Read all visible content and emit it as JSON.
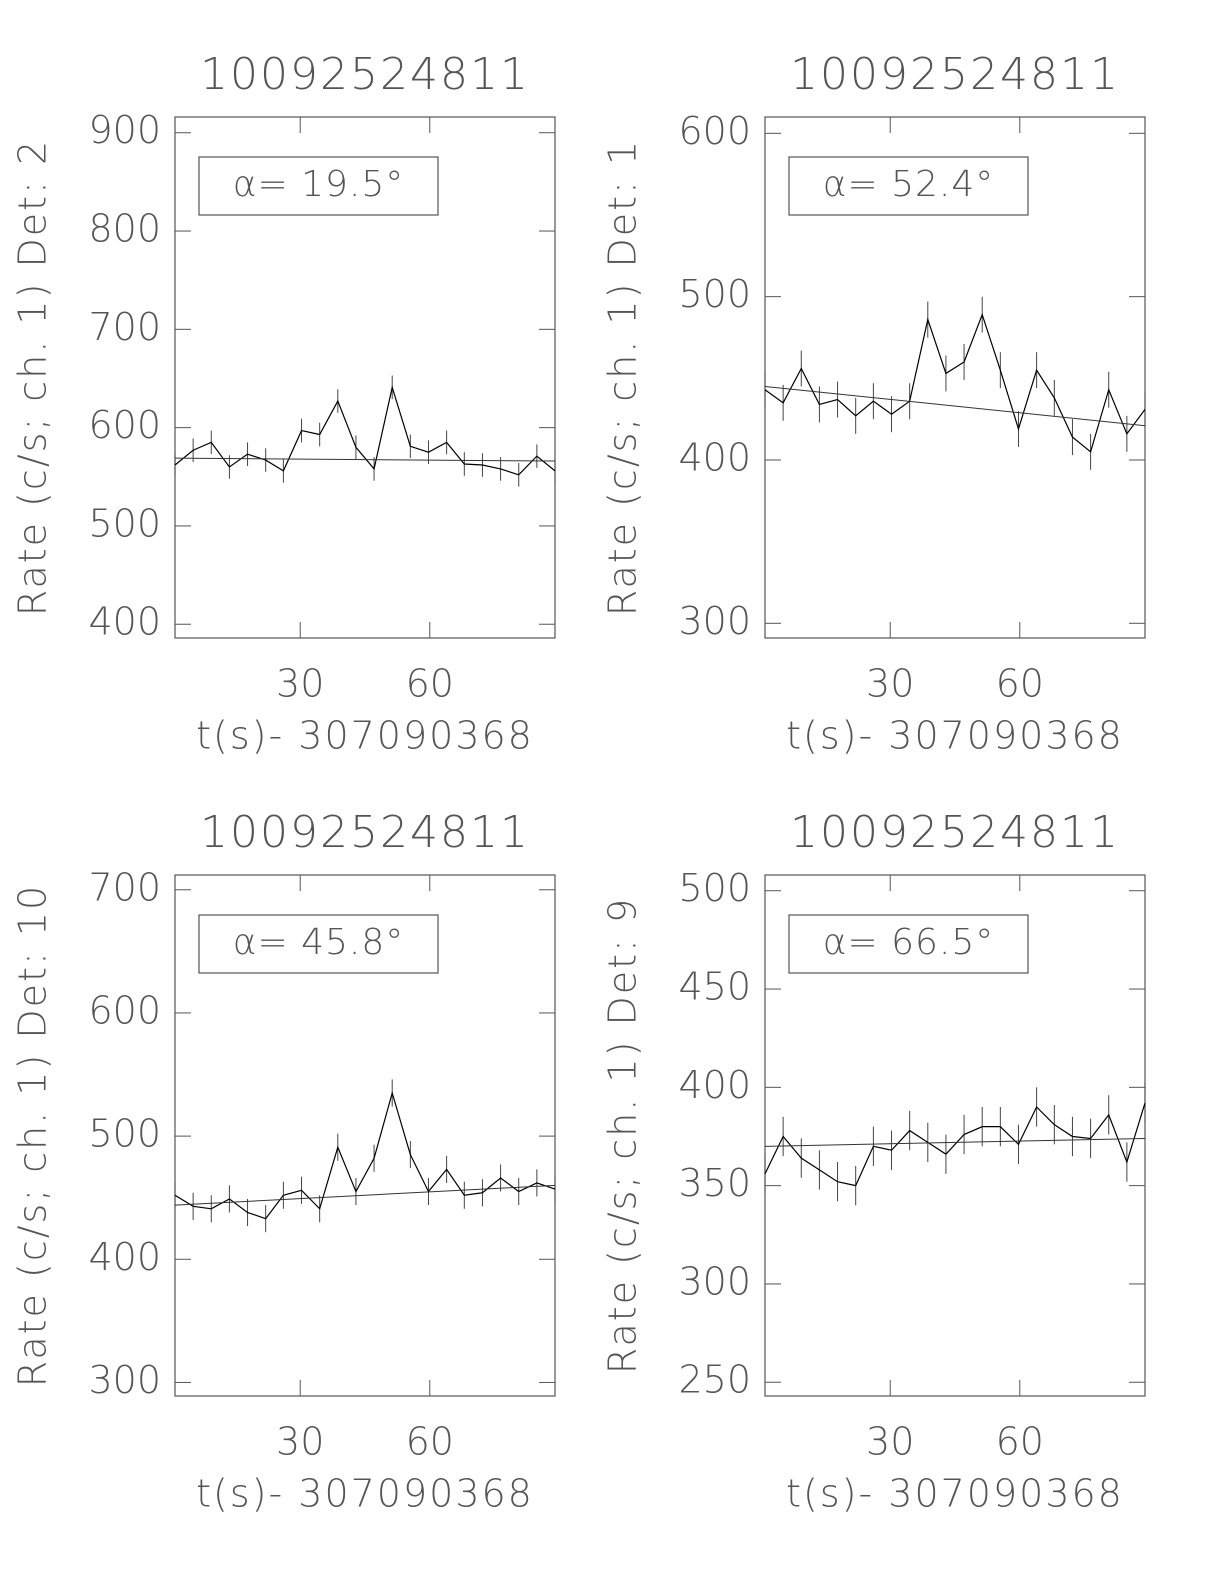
{
  "chart_data": [
    {
      "type": "line",
      "title": "10092524811",
      "ylabel": "Rate (c/s; ch. 1) Det: 2",
      "xlabel": "t(s)- 307090368",
      "annotation": "α= 19.5°",
      "x": [
        1,
        5.2,
        9.4,
        13.6,
        17.8,
        22,
        26.1,
        30.3,
        34.5,
        38.7,
        42.9,
        47.1,
        51.3,
        55.5,
        59.7,
        63.9,
        68,
        72.2,
        76.4,
        80.6,
        84.8,
        89
      ],
      "values": [
        562,
        577,
        585,
        560,
        573,
        567,
        556,
        597,
        593,
        627,
        580,
        558,
        641,
        581,
        575,
        585,
        563,
        562,
        558,
        552,
        571,
        556
      ],
      "errors": [
        12,
        12,
        12,
        12,
        12,
        12,
        12,
        12,
        12,
        12,
        12,
        12,
        12,
        12,
        12,
        12,
        12,
        12,
        12,
        12,
        12,
        12
      ],
      "fit_values": [
        569,
        566
      ],
      "color": "#000000",
      "xlim": [
        1,
        89
      ],
      "ylim": [
        386,
        916
      ],
      "xticks": [
        30,
        60
      ],
      "yticks": [
        400,
        500,
        600,
        700,
        800,
        900
      ]
    },
    {
      "type": "line",
      "title": "10092524811",
      "ylabel": "Rate (c/s; ch. 1) Det: 1",
      "xlabel": "t(s)- 307090368",
      "annotation": "α= 52.4°",
      "x": [
        1,
        5.2,
        9.4,
        13.6,
        17.8,
        22,
        26.1,
        30.3,
        34.5,
        38.7,
        42.9,
        47.1,
        51.3,
        55.5,
        59.7,
        63.9,
        68,
        72.2,
        76.4,
        80.6,
        84.8,
        89
      ],
      "values": [
        443,
        435,
        456,
        434,
        437,
        427,
        436,
        428,
        436,
        486,
        453,
        460,
        489,
        455,
        419,
        455,
        438,
        414,
        405,
        443,
        416,
        431
      ],
      "errors": [
        11,
        11,
        11,
        11,
        11,
        11,
        11,
        11,
        11,
        11,
        11,
        11,
        11,
        11,
        11,
        11,
        11,
        11,
        11,
        11,
        11,
        11
      ],
      "fit_values": [
        445,
        421
      ],
      "color": "#000000",
      "xlim": [
        1,
        89
      ],
      "ylim": [
        291,
        610
      ],
      "xticks": [
        30,
        60
      ],
      "yticks": [
        300,
        400,
        500,
        600
      ]
    },
    {
      "type": "line",
      "title": "10092524811",
      "ylabel": "Rate (c/s; ch. 1) Det: 10",
      "xlabel": "t(s)- 307090368",
      "annotation": "α= 45.8°",
      "x": [
        1,
        5.2,
        9.4,
        13.6,
        17.8,
        22,
        26.1,
        30.3,
        34.5,
        38.7,
        42.9,
        47.1,
        51.3,
        55.5,
        59.7,
        63.9,
        68,
        72.2,
        76.4,
        80.6,
        84.8,
        89
      ],
      "values": [
        452,
        443,
        441,
        449,
        438,
        433,
        452,
        456,
        441,
        491,
        455,
        482,
        535,
        485,
        455,
        473,
        452,
        454,
        466,
        455,
        462,
        457
      ],
      "errors": [
        11,
        11,
        11,
        11,
        11,
        11,
        11,
        11,
        11,
        11,
        11,
        11,
        11,
        11,
        11,
        11,
        11,
        11,
        11,
        11,
        11,
        11
      ],
      "fit_values": [
        444,
        460
      ],
      "color": "#000000",
      "xlim": [
        1,
        89
      ],
      "ylim": [
        289,
        712
      ],
      "xticks": [
        30,
        60
      ],
      "yticks": [
        300,
        400,
        500,
        600,
        700
      ]
    },
    {
      "type": "line",
      "title": "10092524811",
      "ylabel": "Rate (c/s; ch. 1) Det: 9",
      "xlabel": "t(s)- 307090368",
      "annotation": "α= 66.5°",
      "x": [
        1,
        5.2,
        9.4,
        13.6,
        17.8,
        22,
        26.1,
        30.3,
        34.5,
        38.7,
        42.9,
        47.1,
        51.3,
        55.5,
        59.7,
        63.9,
        68,
        72.2,
        76.4,
        80.6,
        84.8,
        89
      ],
      "values": [
        356,
        375,
        364,
        358,
        352,
        350,
        370,
        368,
        378,
        372,
        366,
        376,
        380,
        380,
        371,
        390,
        381,
        375,
        374,
        386,
        362,
        392
      ],
      "errors": [
        10,
        10,
        10,
        10,
        10,
        10,
        10,
        10,
        10,
        10,
        10,
        10,
        10,
        10,
        10,
        10,
        10,
        10,
        10,
        10,
        10,
        10
      ],
      "fit_values": [
        370,
        374
      ],
      "color": "#000000",
      "xlim": [
        1,
        89
      ],
      "ylim": [
        243,
        508
      ],
      "xticks": [
        30,
        60
      ],
      "yticks": [
        250,
        300,
        350,
        400,
        450,
        500
      ]
    }
  ]
}
